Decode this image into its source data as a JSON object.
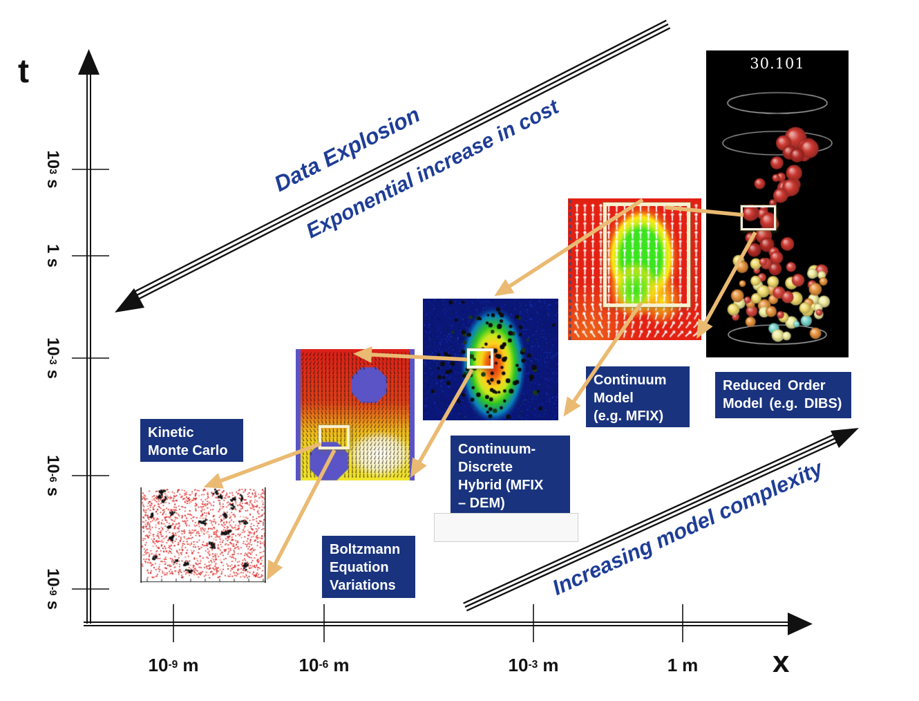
{
  "figure": {
    "t_axis_label": "t",
    "x_axis_label": "x",
    "t_ticks": [
      {
        "base": "10",
        "exp": "3",
        "unit": "s"
      },
      {
        "base": "1",
        "exp": "",
        "unit": "s"
      },
      {
        "base": "10",
        "exp": "-3",
        "unit": "s"
      },
      {
        "base": "10",
        "exp": "-6",
        "unit": "s"
      },
      {
        "base": "10",
        "exp": "-9",
        "unit": "s"
      }
    ],
    "x_ticks": [
      {
        "base": "10",
        "exp": "-9",
        "unit": "m"
      },
      {
        "base": "10",
        "exp": "-6",
        "unit": "m"
      },
      {
        "base": "10",
        "exp": "-3",
        "unit": "m"
      },
      {
        "base": "1",
        "exp": "",
        "unit": "m"
      }
    ]
  },
  "annotations": {
    "data_explosion": "Data Explosion",
    "exponential_cost": "Exponential increase in cost",
    "model_complexity": "Increasing model complexity"
  },
  "model_labels": {
    "kmc": {
      "line1": "Kinetic",
      "line2": "Monte Carlo"
    },
    "boltzmann": {
      "line1": "Boltzmann",
      "line2": "Equation",
      "line3": "Variations"
    },
    "hybrid": {
      "line1": "Continuum-",
      "line2": "Discrete",
      "line3": "Hybrid (MFIX",
      "line4": "– DEM)"
    },
    "continuum": {
      "line1": "Continuum",
      "line2": "Model",
      "line3": "(e.g. MFIX)"
    },
    "reduced_order": {
      "line1": "Reduced Order",
      "line2": "Model (e.g. DIBS)"
    }
  },
  "fluidized_bed": {
    "timestamp": "30.101"
  },
  "colors": {
    "label_box": "#19337e",
    "annotation_text": "#1e3d96",
    "callout_arrow": "#eaba72",
    "axis": "#111111"
  }
}
